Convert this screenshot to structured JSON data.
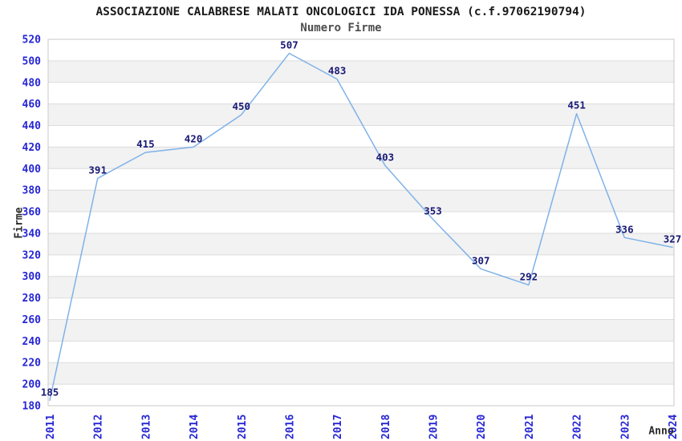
{
  "title": "ASSOCIAZIONE CALABRESE MALATI ONCOLOGICI IDA PONESSA (c.f.97062190794)",
  "subtitle": "Numero Firme",
  "chart_data": {
    "type": "line",
    "title": "ASSOCIAZIONE CALABRESE MALATI ONCOLOGICI IDA PONESSA (c.f.97062190794)",
    "subtitle": "Numero Firme",
    "xlabel": "Anno",
    "ylabel": "Firme",
    "x": [
      2011,
      2012,
      2013,
      2014,
      2015,
      2016,
      2017,
      2018,
      2019,
      2020,
      2021,
      2022,
      2023,
      2024
    ],
    "values": [
      185,
      391,
      415,
      420,
      450,
      507,
      483,
      403,
      353,
      307,
      292,
      451,
      336,
      327
    ],
    "ylim": [
      180,
      520
    ],
    "ytick_step": 20,
    "grid": true,
    "legend_position": "none",
    "point_labels_visible": true,
    "colors": {
      "line": "#7FB2E8",
      "tick_labels": "#2626D4",
      "point_labels": "#191975",
      "band_light": "#FFFFFF",
      "band_dark": "#F2F2F2",
      "gridline": "#DCDCDC",
      "plot_border": "#C9C9C9",
      "title_text": "#1A1A1A",
      "subtitle_text": "#4D4D4D",
      "axis_label_text": "#2B2B2B"
    }
  }
}
